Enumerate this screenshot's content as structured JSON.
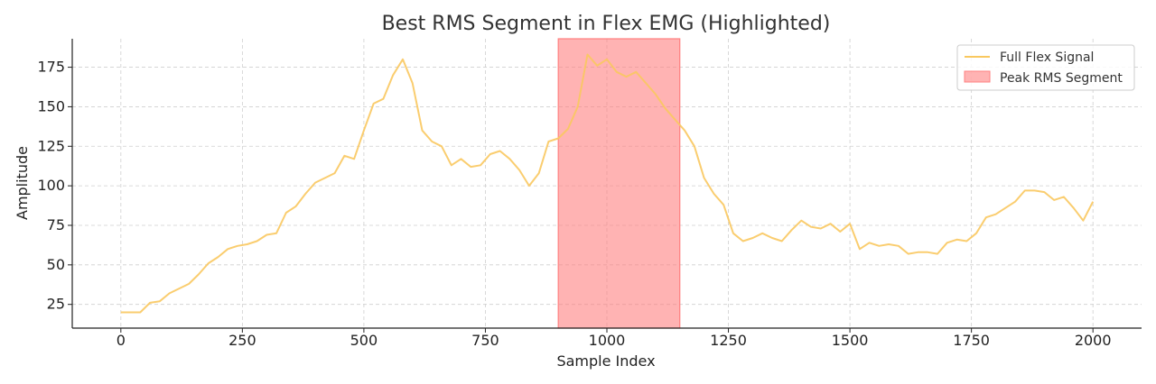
{
  "chart_data": {
    "type": "line",
    "title": "Best RMS Segment in Flex EMG (Highlighted)",
    "xlabel": "Sample Index",
    "ylabel": "Amplitude",
    "xlim": [
      -100,
      2100
    ],
    "ylim": [
      10,
      193
    ],
    "x_ticks": [
      0,
      250,
      500,
      750,
      1000,
      1250,
      1500,
      1750,
      2000
    ],
    "y_ticks": [
      25,
      50,
      75,
      100,
      125,
      150,
      175
    ],
    "grid": true,
    "legend_position": "top-right",
    "series": [
      {
        "name": "Full Flex Signal",
        "color": "#f9c85f",
        "x": [
          0,
          20,
          40,
          60,
          80,
          100,
          120,
          140,
          160,
          180,
          200,
          220,
          240,
          260,
          280,
          300,
          320,
          340,
          360,
          380,
          400,
          420,
          440,
          460,
          480,
          500,
          520,
          540,
          560,
          580,
          600,
          620,
          640,
          660,
          680,
          700,
          720,
          740,
          760,
          780,
          800,
          820,
          840,
          860,
          880,
          900,
          920,
          940,
          960,
          980,
          1000,
          1020,
          1040,
          1060,
          1080,
          1100,
          1120,
          1140,
          1160,
          1180,
          1200,
          1220,
          1240,
          1260,
          1280,
          1300,
          1320,
          1340,
          1360,
          1380,
          1400,
          1420,
          1440,
          1460,
          1480,
          1500,
          1520,
          1540,
          1560,
          1580,
          1600,
          1620,
          1640,
          1660,
          1680,
          1700,
          1720,
          1740,
          1760,
          1780,
          1800,
          1820,
          1840,
          1860,
          1880,
          1900,
          1920,
          1940,
          1960,
          1980,
          2000
        ],
        "y": [
          20,
          20,
          20,
          26,
          27,
          32,
          35,
          38,
          44,
          51,
          55,
          60,
          62,
          63,
          65,
          69,
          70,
          83,
          87,
          95,
          102,
          105,
          108,
          119,
          117,
          135,
          152,
          155,
          170,
          180,
          165,
          135,
          128,
          125,
          113,
          117,
          112,
          113,
          120,
          122,
          117,
          110,
          100,
          108,
          128,
          130,
          136,
          150,
          183,
          176,
          180,
          172,
          169,
          172,
          165,
          158,
          149,
          142,
          135,
          125,
          105,
          95,
          88,
          70,
          65,
          67,
          70,
          67,
          65,
          72,
          78,
          74,
          73,
          76,
          71,
          76,
          60,
          64,
          62,
          63,
          62,
          57,
          58,
          58,
          57,
          64,
          66,
          65,
          70,
          80,
          82,
          86,
          90,
          97,
          97,
          96,
          91,
          93,
          86,
          78,
          90
        ]
      }
    ],
    "highlight": {
      "name": "Peak RMS Segment",
      "color": "#ff8080",
      "x_start": 900,
      "x_end": 1150
    }
  }
}
